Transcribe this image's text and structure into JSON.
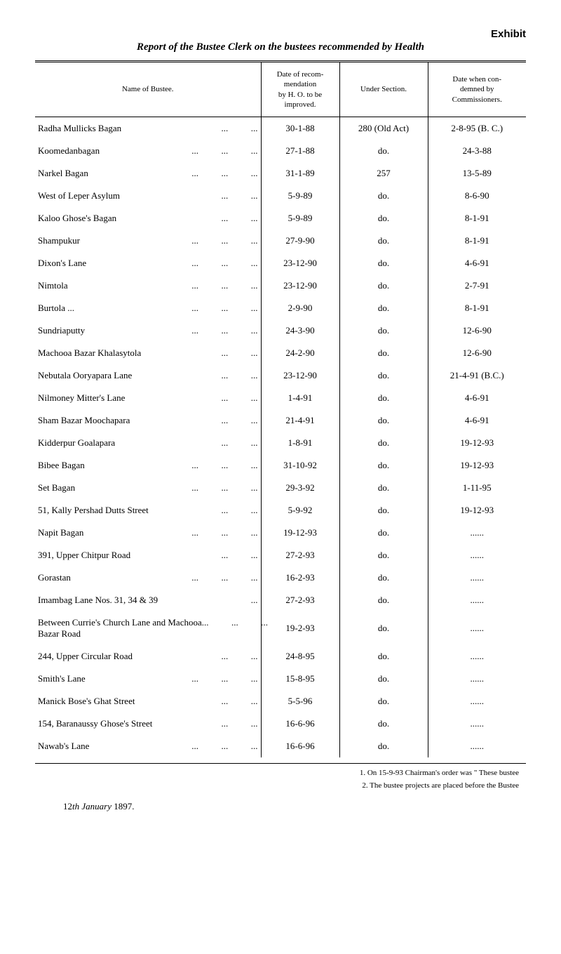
{
  "exhibit_label": "Exhibit",
  "report_title": "Report of the Bustee Clerk on the bustees recommended by Health",
  "headers": {
    "name": "Name of Bustee.",
    "date_recom": "Date of recom-\nmendation\nby H. O. to be\nimproved.",
    "under_section": "Under Section.",
    "date_condemned": "Date when con-\ndemned by\nCommissioners."
  },
  "rows": [
    {
      "name": "Radha Mullicks Bagan",
      "dots": "...          ...",
      "date": "30-1-88",
      "section": "280 (Old Act)",
      "comm": "2-8-95 (B. C.)"
    },
    {
      "name": "Koomedanbagan",
      "dots": "...          ...          ...",
      "date": "27-1-88",
      "section": "do.",
      "comm": "24-3-88"
    },
    {
      "name": "Narkel Bagan",
      "dots": "...          ...          ...",
      "date": "31-1-89",
      "section": "257",
      "comm": "13-5-89"
    },
    {
      "name": "West of Leper Asylum",
      "dots": "...          ...",
      "date": "5-9-89",
      "section": "do.",
      "comm": "8-6-90"
    },
    {
      "name": "Kaloo Ghose's Bagan",
      "dots": "...          ...",
      "date": "5-9-89",
      "section": "do.",
      "comm": "8-1-91"
    },
    {
      "name": "Shampukur",
      "dots": "...          ...          ...",
      "date": "27-9-90",
      "section": "do.",
      "comm": "8-1-91"
    },
    {
      "name": "Dixon's Lane",
      "dots": "...          ...          ...",
      "date": "23-12-90",
      "section": "do.",
      "comm": "4-6-91"
    },
    {
      "name": "Nimtola",
      "dots": "...          ...          ...",
      "date": "23-12-90",
      "section": "do.",
      "comm": "2-7-91"
    },
    {
      "name": "Burtola   ...",
      "dots": "...          ...          ...",
      "date": "2-9-90",
      "section": "do.",
      "comm": "8-1-91"
    },
    {
      "name": "Sundriaputty",
      "dots": "...          ...          ...",
      "date": "24-3-90",
      "section": "do.",
      "comm": "12-6-90"
    },
    {
      "name": "Machooa Bazar Khalasytola",
      "dots": "...          ...",
      "date": "24-2-90",
      "section": "do.",
      "comm": "12-6-90"
    },
    {
      "name": "Nebutala Ooryapara Lane",
      "dots": "...          ...",
      "date": "23-12-90",
      "section": "do.",
      "comm": "21-4-91 (B.C.)"
    },
    {
      "name": "Nilmoney Mitter's Lane",
      "dots": "...          ...",
      "date": "1-4-91",
      "section": "do.",
      "comm": "4-6-91"
    },
    {
      "name": "Sham Bazar Moochapara",
      "dots": "...          ...",
      "date": "21-4-91",
      "section": "do.",
      "comm": "4-6-91"
    },
    {
      "name": "Kidderpur Goalapara",
      "dots": "...          ...",
      "date": "1-8-91",
      "section": "do.",
      "comm": "19-12-93"
    },
    {
      "name": "Bibee Bagan",
      "dots": "...          ...          ...",
      "date": "31-10-92",
      "section": "do.",
      "comm": "19-12-93"
    },
    {
      "name": "Set Bagan",
      "dots": "...          ...          ...",
      "date": "29-3-92",
      "section": "do.",
      "comm": "1-11-95"
    },
    {
      "name": "51, Kally Pershad Dutts Street",
      "dots": "...          ...",
      "date": "5-9-92",
      "section": "do.",
      "comm": "19-12-93"
    },
    {
      "name": "Napit Bagan",
      "dots": "...          ...          ...",
      "date": "19-12-93",
      "section": "do.",
      "comm": "......"
    },
    {
      "name": "391, Upper Chitpur Road",
      "dots": "...          ...",
      "date": "27-2-93",
      "section": "do.",
      "comm": "......"
    },
    {
      "name": "Gorastan",
      "dots": "...          ...          ...",
      "date": "16-2-93",
      "section": "do.",
      "comm": "......"
    },
    {
      "name": "Imambag Lane Nos. 31, 34 & 39",
      "dots": "...",
      "date": "27-2-93",
      "section": "do.",
      "comm": "......"
    },
    {
      "name": "Between Currie's Church Lane and Machooa\n      Bazar Road",
      "dots": "...          ...          ...",
      "date": "19-2-93",
      "section": "do.",
      "comm": "......"
    },
    {
      "name": "244, Upper Circular Road",
      "dots": "...          ...",
      "date": "24-8-95",
      "section": "do.",
      "comm": "......"
    },
    {
      "name": "Smith's Lane",
      "dots": "...          ...          ...",
      "date": "15-8-95",
      "section": "do.",
      "comm": "......"
    },
    {
      "name": "Manick Bose's Ghat Street",
      "dots": "...          ...",
      "date": "5-5-96",
      "section": "do.",
      "comm": "......"
    },
    {
      "name": "154, Baranaussy Ghose's Street",
      "dots": "...          ...",
      "date": "16-6-96",
      "section": "do.",
      "comm": "......"
    },
    {
      "name": "Nawab's Lane",
      "dots": "...          ...          ...",
      "date": "16-6-96",
      "section": "do.",
      "comm": "......"
    }
  ],
  "footnotes": [
    "1.   On 15-9-93 Chairman's order was \" These bustee",
    "2.   The bustee projects are placed before the Bustee"
  ],
  "bottom_date_prefix": "12",
  "bottom_date_italic": "th January",
  "bottom_date_year": " 1897."
}
